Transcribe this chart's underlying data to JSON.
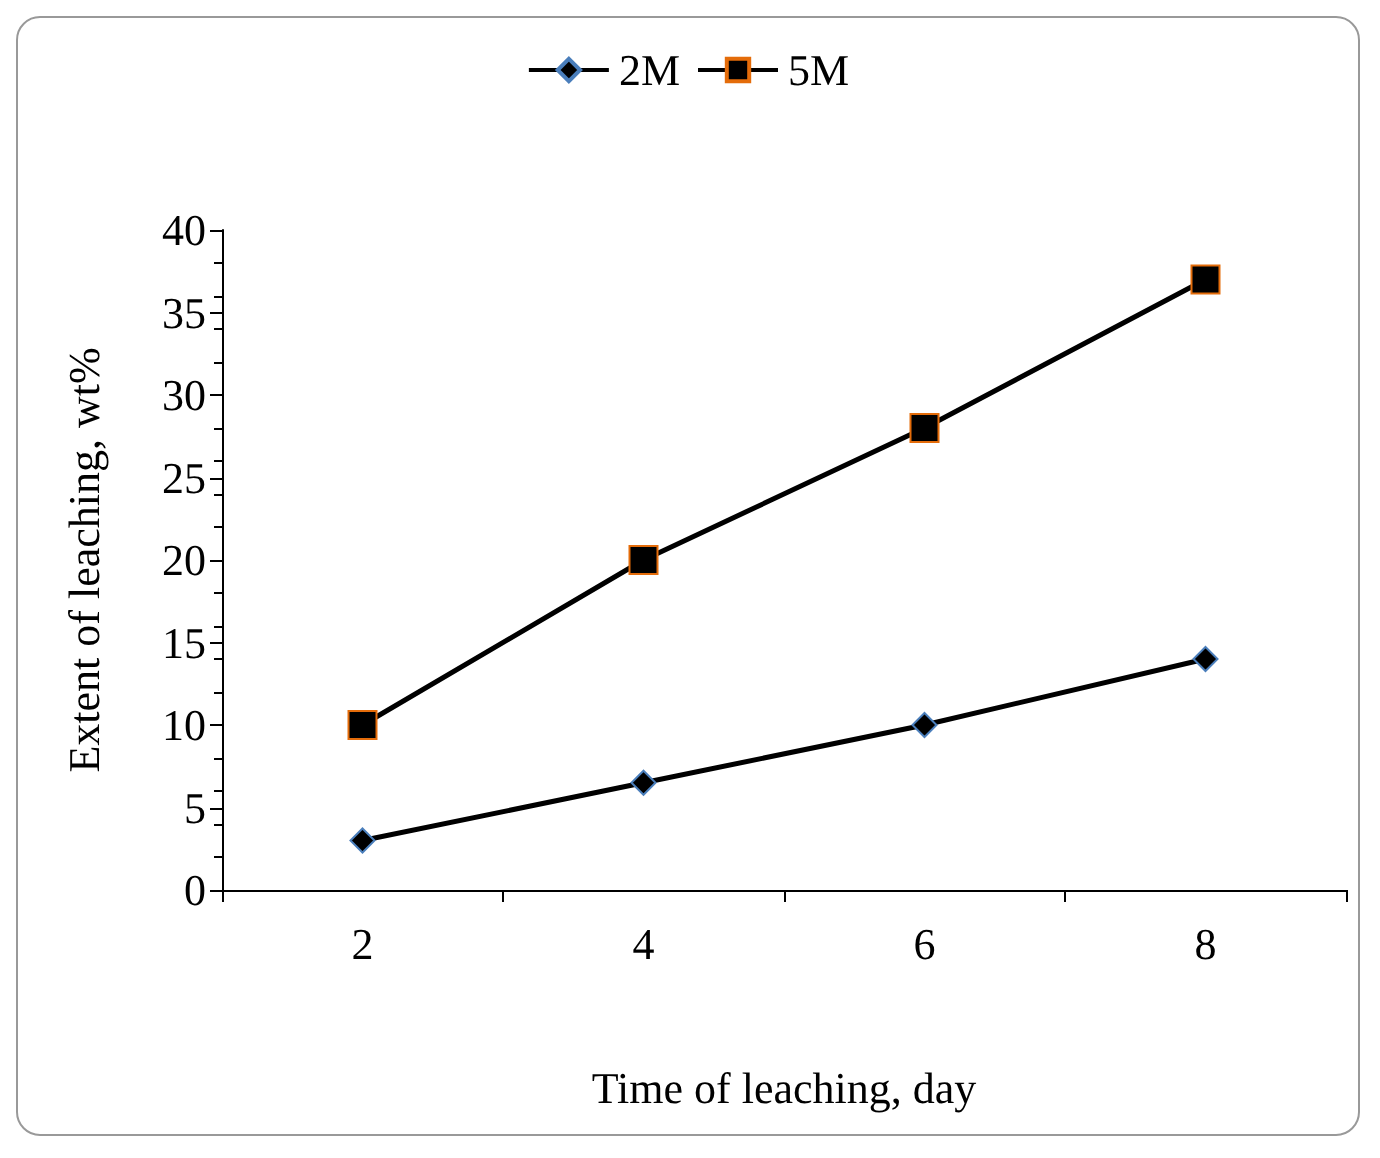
{
  "chart_data": {
    "type": "line",
    "xlabel": "Time of leaching, day",
    "ylabel": "Extent of leaching, wt%",
    "categories": [
      "2",
      "4",
      "6",
      "8"
    ],
    "series": [
      {
        "name": "2M",
        "color": "#000000",
        "marker": "diamond",
        "values": [
          3,
          6.5,
          10,
          14
        ]
      },
      {
        "name": "5M",
        "color": "#000000",
        "marker": "square",
        "values": [
          10,
          20,
          28,
          37
        ]
      }
    ],
    "ylim": [
      0,
      40
    ],
    "yticks": [
      0,
      5,
      10,
      15,
      20,
      25,
      30,
      35,
      40
    ],
    "grid": false,
    "legend": "top"
  }
}
